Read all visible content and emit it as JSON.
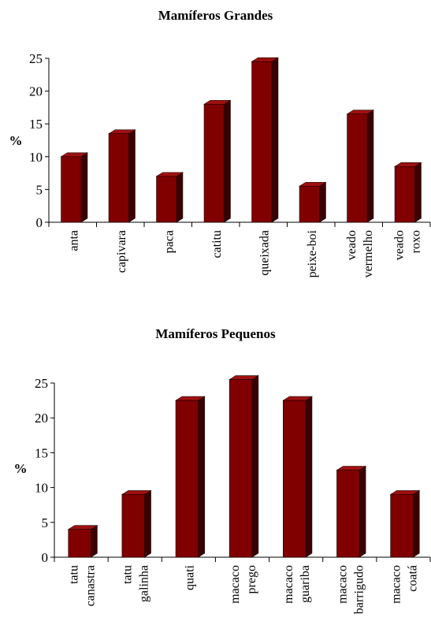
{
  "chart_data": [
    {
      "type": "bar",
      "title": "Mamíferos Grandes",
      "ylabel": "%",
      "xlabel": "",
      "ylim": [
        0,
        25
      ],
      "yticks": [
        0,
        5,
        10,
        15,
        20,
        25
      ],
      "categories": [
        [
          "anta"
        ],
        [
          "capivara"
        ],
        [
          "paca"
        ],
        [
          "catitu"
        ],
        [
          "queixada"
        ],
        [
          "peixe-boi"
        ],
        [
          "veado",
          "vermelho"
        ],
        [
          "veado",
          "roxo"
        ]
      ],
      "values": [
        10,
        13.5,
        7,
        18,
        24.5,
        5.5,
        16.5,
        8.5
      ],
      "bar_color": "#800000",
      "grid": false
    },
    {
      "type": "bar",
      "title": "Mamíferos Pequenos",
      "ylabel": "%",
      "xlabel": "",
      "ylim": [
        0,
        25
      ],
      "yticks": [
        0,
        5,
        10,
        15,
        20,
        25
      ],
      "categories": [
        [
          "tatu",
          "canastra"
        ],
        [
          "tatu",
          "galinha"
        ],
        [
          "quati"
        ],
        [
          "macaco",
          "prego"
        ],
        [
          "macaco",
          "guariba"
        ],
        [
          "macaco",
          "barrigudo"
        ],
        [
          "macaco",
          "coatá"
        ]
      ],
      "values": [
        4,
        9,
        22.5,
        25.5,
        22.5,
        12.5,
        9
      ],
      "bar_color": "#800000",
      "grid": false
    }
  ]
}
